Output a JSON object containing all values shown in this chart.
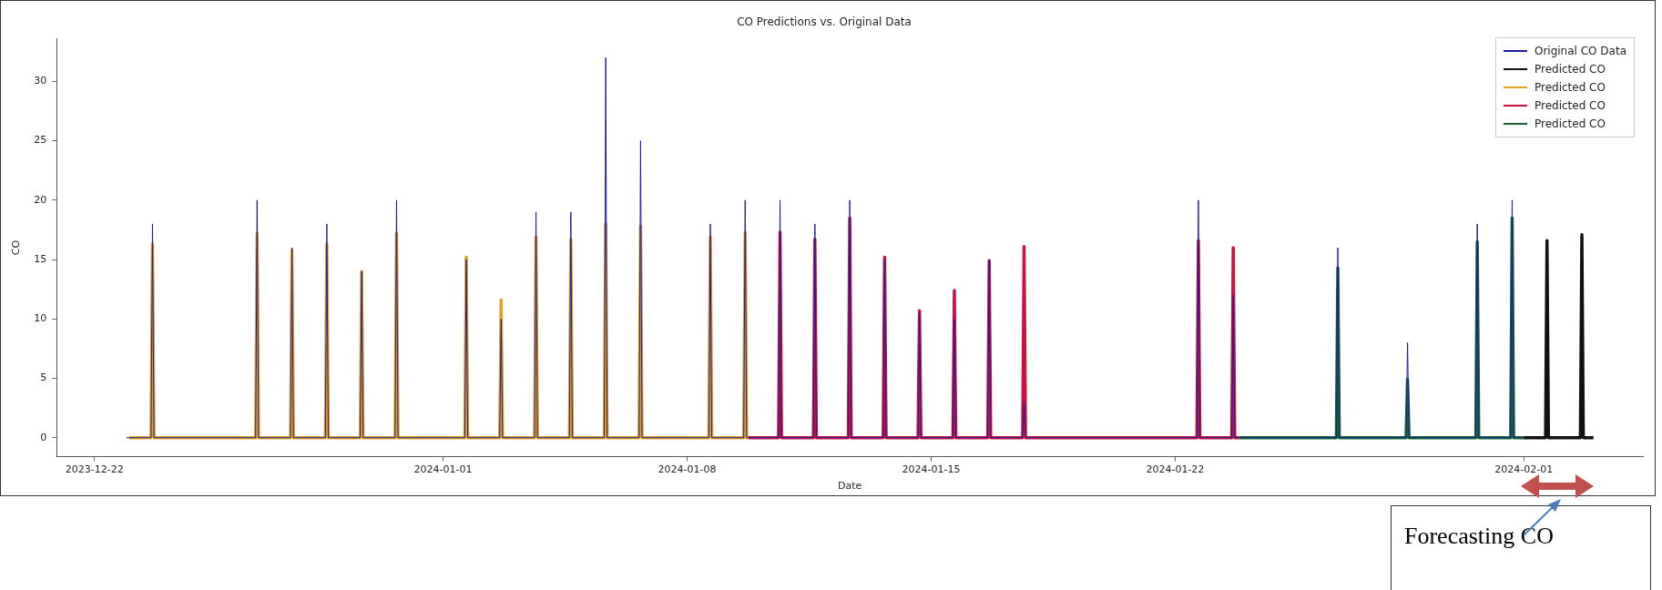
{
  "chart_data": {
    "type": "line",
    "title": "CO Predictions vs. Original Data",
    "xlabel": "Date",
    "ylabel": "CO",
    "xlim": [
      "2023-12-20T22:00",
      "2024-02-04T10:00"
    ],
    "xticks": [
      "2023-12-22",
      "2024-01-01",
      "2024-01-08",
      "2024-01-15",
      "2024-01-22",
      "2024-02-01"
    ],
    "ylim": [
      -1.6,
      33.6
    ],
    "yticks": [
      0,
      5,
      10,
      15,
      20,
      25,
      30
    ],
    "grid": false,
    "legend": "top right",
    "marker": "none",
    "line_style": "solid",
    "annotations": [
      "Forecasting CO"
    ],
    "series": [
      {
        "name": "Original CO Data",
        "color": "#1c1c9e",
        "x": [
          "2023-12-22T22:00",
          "2023-12-23T15:00",
          "2023-12-23T16:00",
          "2023-12-23T17:00",
          "2023-12-26T15:00",
          "2023-12-26T16:00",
          "2023-12-26T17:00",
          "2023-12-27T15:00",
          "2023-12-27T16:00",
          "2023-12-27T17:00",
          "2023-12-28T15:00",
          "2023-12-28T16:00",
          "2023-12-28T17:00",
          "2023-12-29T15:00",
          "2023-12-29T16:00",
          "2023-12-29T17:00",
          "2023-12-30T15:00",
          "2023-12-30T16:00",
          "2023-12-30T17:00",
          "2024-01-01T15:00",
          "2024-01-01T16:00",
          "2024-01-01T17:00",
          "2024-01-02T15:00",
          "2024-01-02T16:00",
          "2024-01-02T17:00",
          "2024-01-03T15:00",
          "2024-01-03T16:00",
          "2024-01-03T17:00",
          "2024-01-04T15:00",
          "2024-01-04T16:00",
          "2024-01-04T17:00",
          "2024-01-05T15:00",
          "2024-01-05T16:00",
          "2024-01-05T17:00",
          "2024-01-06T15:00",
          "2024-01-06T16:00",
          "2024-01-06T17:00",
          "2024-01-08T15:00",
          "2024-01-08T16:00",
          "2024-01-08T17:00",
          "2024-01-09T15:00",
          "2024-01-09T16:00",
          "2024-01-09T17:00",
          "2024-01-10T15:00",
          "2024-01-10T16:00",
          "2024-01-10T17:00",
          "2024-01-11T15:00",
          "2024-01-11T16:00",
          "2024-01-11T17:00",
          "2024-01-12T15:00",
          "2024-01-12T16:00",
          "2024-01-12T17:00",
          "2024-01-13T15:00",
          "2024-01-13T16:00",
          "2024-01-13T17:00",
          "2024-01-14T15:00",
          "2024-01-14T16:00",
          "2024-01-14T17:00",
          "2024-01-15T15:00",
          "2024-01-15T16:00",
          "2024-01-15T17:00",
          "2024-01-16T15:00",
          "2024-01-16T16:00",
          "2024-01-16T17:00",
          "2024-01-17T15:00",
          "2024-01-17T16:00",
          "2024-01-17T17:00",
          "2024-01-22T15:00",
          "2024-01-22T16:00",
          "2024-01-22T17:00",
          "2024-01-23T15:00",
          "2024-01-23T16:00",
          "2024-01-23T17:00",
          "2024-01-26T15:00",
          "2024-01-26T16:00",
          "2024-01-26T17:00",
          "2024-01-28T15:00",
          "2024-01-28T16:00",
          "2024-01-28T17:00",
          "2024-01-30T15:00",
          "2024-01-30T16:00",
          "2024-01-30T17:00",
          "2024-01-31T15:00",
          "2024-01-31T16:00",
          "2024-01-31T17:00",
          "2024-02-01T00:00"
        ],
        "values": [
          0,
          0,
          18,
          0,
          0,
          20,
          0,
          0,
          16,
          0,
          0,
          18,
          0,
          0,
          14,
          0,
          0,
          20,
          0,
          0,
          15,
          0,
          0,
          10,
          0,
          0,
          19,
          0,
          0,
          19,
          0,
          0,
          32,
          0,
          0,
          25,
          0,
          0,
          18,
          0,
          0,
          20,
          0,
          0,
          20,
          0,
          0,
          18,
          0,
          0,
          20,
          0,
          0,
          15,
          0,
          0,
          10.5,
          0,
          0,
          10,
          0,
          0,
          15,
          0,
          0,
          3,
          0,
          0,
          20,
          0,
          0,
          12,
          0,
          0,
          16,
          0,
          0,
          8,
          0,
          0,
          18,
          0,
          0,
          20,
          0,
          0
        ]
      },
      {
        "name": "Predicted CO",
        "color": "#111111",
        "x": [
          "2024-02-01T00:00",
          "2024-02-01T15:00",
          "2024-02-01T16:00",
          "2024-02-01T17:00",
          "2024-02-02T15:00",
          "2024-02-02T16:00",
          "2024-02-02T17:00",
          "2024-02-03T00:00"
        ],
        "values": [
          0,
          0,
          16.6,
          0,
          0,
          17.1,
          0,
          0
        ]
      },
      {
        "name": "Predicted CO",
        "color": "#e3a21f",
        "x": [
          "2023-12-23T00:00",
          "2023-12-23T15:00",
          "2023-12-23T16:00",
          "2023-12-23T17:00",
          "2023-12-26T15:00",
          "2023-12-26T16:00",
          "2023-12-26T17:00",
          "2023-12-27T15:00",
          "2023-12-27T16:00",
          "2023-12-27T17:00",
          "2023-12-28T15:00",
          "2023-12-28T16:00",
          "2023-12-28T17:00",
          "2023-12-29T15:00",
          "2023-12-29T16:00",
          "2023-12-29T17:00",
          "2023-12-30T15:00",
          "2023-12-30T16:00",
          "2023-12-30T17:00",
          "2024-01-01T15:00",
          "2024-01-01T16:00",
          "2024-01-01T17:00",
          "2024-01-02T15:00",
          "2024-01-02T16:00",
          "2024-01-02T17:00",
          "2024-01-03T15:00",
          "2024-01-03T16:00",
          "2024-01-03T17:00",
          "2024-01-04T15:00",
          "2024-01-04T16:00",
          "2024-01-04T17:00",
          "2024-01-05T15:00",
          "2024-01-05T16:00",
          "2024-01-05T17:00",
          "2024-01-06T15:00",
          "2024-01-06T16:00",
          "2024-01-06T17:00",
          "2024-01-08T15:00",
          "2024-01-08T16:00",
          "2024-01-08T17:00",
          "2024-01-09T15:00",
          "2024-01-09T16:00",
          "2024-01-09T17:00",
          "2024-01-09T18:00"
        ],
        "values": [
          0,
          0,
          16.3,
          0,
          0,
          17.2,
          0,
          0,
          15.8,
          0,
          0,
          16.3,
          0,
          0,
          14,
          0,
          0,
          17.2,
          0,
          0,
          15.2,
          0,
          0,
          11.6,
          0,
          0,
          16.9,
          0,
          0,
          16.7,
          0,
          0,
          18,
          0,
          0,
          17.8,
          0,
          0,
          16.9,
          0,
          0,
          17.3,
          0,
          0
        ]
      },
      {
        "name": "Predicted CO",
        "color": "#c8143c",
        "x": [
          "2024-01-09T18:00",
          "2024-01-10T15:00",
          "2024-01-10T16:00",
          "2024-01-10T17:00",
          "2024-01-11T15:00",
          "2024-01-11T16:00",
          "2024-01-11T17:00",
          "2024-01-12T15:00",
          "2024-01-12T16:00",
          "2024-01-12T17:00",
          "2024-01-13T15:00",
          "2024-01-13T16:00",
          "2024-01-13T17:00",
          "2024-01-14T15:00",
          "2024-01-14T16:00",
          "2024-01-14T17:00",
          "2024-01-15T15:00",
          "2024-01-15T16:00",
          "2024-01-15T17:00",
          "2024-01-16T15:00",
          "2024-01-16T16:00",
          "2024-01-16T17:00",
          "2024-01-17T15:00",
          "2024-01-17T16:00",
          "2024-01-17T17:00",
          "2024-01-22T15:00",
          "2024-01-22T16:00",
          "2024-01-22T17:00",
          "2024-01-23T15:00",
          "2024-01-23T16:00",
          "2024-01-23T17:00",
          "2024-01-23T20:00"
        ],
        "values": [
          0,
          0,
          17.3,
          0,
          0,
          16.7,
          0,
          0,
          18.5,
          0,
          0,
          15.2,
          0,
          0,
          10.7,
          0,
          0,
          12.4,
          0,
          0,
          14.9,
          0,
          0,
          16.1,
          0,
          0,
          16.6,
          0,
          0,
          16,
          0,
          0
        ]
      },
      {
        "name": "Predicted CO",
        "color": "#17662c",
        "x": [
          "2024-01-23T20:00",
          "2024-01-26T15:00",
          "2024-01-26T16:00",
          "2024-01-26T17:00",
          "2024-01-28T15:00",
          "2024-01-28T16:00",
          "2024-01-28T17:00",
          "2024-01-30T15:00",
          "2024-01-30T16:00",
          "2024-01-30T17:00",
          "2024-01-31T15:00",
          "2024-01-31T16:00",
          "2024-01-31T17:00",
          "2024-02-01T00:00"
        ],
        "values": [
          0,
          0,
          14.3,
          0,
          0,
          4.9,
          0,
          0,
          16.5,
          0,
          0,
          18.5,
          0,
          0
        ]
      }
    ]
  }
}
